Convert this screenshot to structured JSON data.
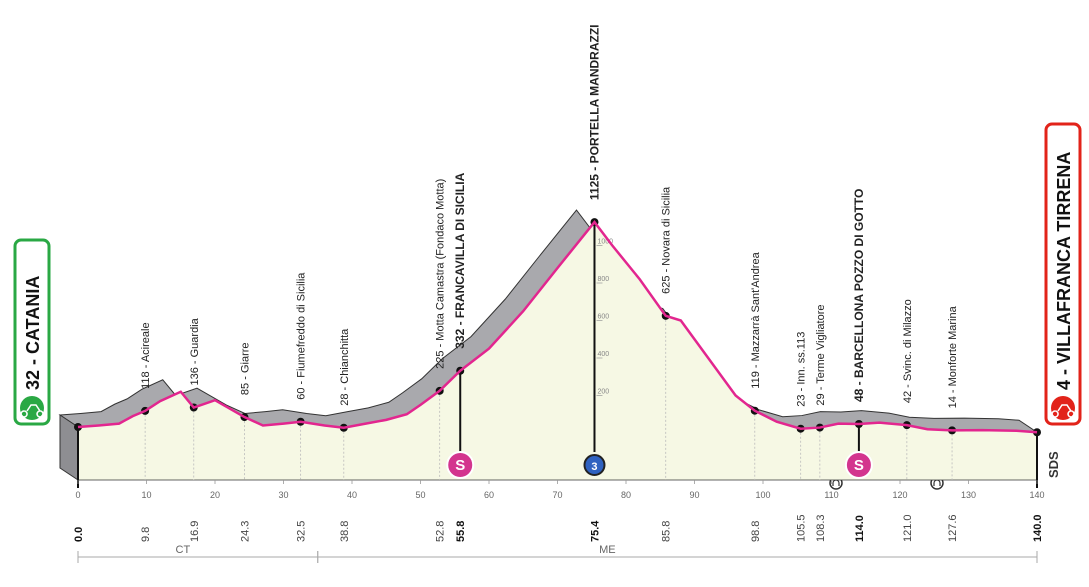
{
  "chart_data": {
    "type": "area",
    "x": [
      0,
      3,
      6,
      8,
      9.8,
      12,
      15,
      16.9,
      20,
      24.3,
      27,
      30,
      32.5,
      36,
      38.8,
      42,
      45,
      48,
      50,
      52.8,
      55.8,
      60,
      65,
      70,
      75.4,
      78,
      82,
      85.8,
      88,
      92,
      96,
      98.8,
      102,
      105.5,
      108.3,
      111,
      114,
      117,
      121,
      124,
      127.6,
      132,
      137,
      140
    ],
    "values": [
      32,
      40,
      50,
      90,
      118,
      170,
      220,
      136,
      175,
      85,
      40,
      50,
      60,
      40,
      28,
      50,
      70,
      100,
      150,
      225,
      332,
      450,
      650,
      880,
      1125,
      1000,
      820,
      625,
      600,
      400,
      200,
      119,
      60,
      23,
      29,
      50,
      48,
      55,
      42,
      20,
      14,
      15,
      12,
      4
    ],
    "color": "#e2268f",
    "xlim": [
      0,
      140
    ],
    "xticks": [
      0,
      10,
      20,
      30,
      40,
      50,
      60,
      70,
      80,
      90,
      100,
      110,
      120,
      130,
      140
    ],
    "ylim": [
      0,
      1200
    ],
    "yticks": [
      200,
      400,
      600,
      800,
      1000
    ],
    "start": {
      "label": "32 - CATANIA",
      "color": "#2aa844"
    },
    "finish": {
      "label": "4 - VILLAFRANCA TIRRENA",
      "color": "#e2231a"
    },
    "logo": "SDS",
    "waypoints": [
      {
        "km": 0,
        "km_label": "0.0",
        "bold": true
      },
      {
        "km": 9.8,
        "km_label": "9.8",
        "label": "118 - Acireale"
      },
      {
        "km": 16.9,
        "km_label": "16.9",
        "label": "136 - Guardia"
      },
      {
        "km": 24.3,
        "km_label": "24.3",
        "label": "85 - Giarre"
      },
      {
        "km": 32.5,
        "km_label": "32.5",
        "label": "60 - Fiumefreddo di Sicilia"
      },
      {
        "km": 38.8,
        "km_label": "38.8",
        "label": "28 - Chianchitta"
      },
      {
        "km": 52.8,
        "km_label": "52.8",
        "label": "225 - Motta Camastra (Fondaco Motta)"
      },
      {
        "km": 55.8,
        "km_label": "55.8",
        "label": "332 - FRANCAVILLA DI SICILIA",
        "bold": true,
        "icon": "S"
      },
      {
        "km": 75.4,
        "km_label": "75.4",
        "label": "1125 - PORTELLA MANDRAZZI",
        "bold": true,
        "icon": "3"
      },
      {
        "km": 85.8,
        "km_label": "85.8",
        "label": "625 - Novara di Sicilia"
      },
      {
        "km": 98.8,
        "km_label": "98.8",
        "label": "119 - Mazzarrà Sant'Andrea"
      },
      {
        "km": 105.5,
        "km_label": "105.5",
        "label": "23 - Inn. ss.113"
      },
      {
        "km": 108.3,
        "km_label": "108.3",
        "label": "29 - Terme Vigliatore"
      },
      {
        "km": 114,
        "km_label": "114.0",
        "label": "48 - BARCELLONA POZZO DI GOTTO",
        "bold": true,
        "icon": "S"
      },
      {
        "km": 121,
        "km_label": "121.0",
        "label": "42 - Svinc. di Milazzo"
      },
      {
        "km": 127.6,
        "km_label": "127.6",
        "label": "14 - Monforte Marina"
      },
      {
        "km": 140,
        "km_label": "140.0",
        "bold": true
      }
    ],
    "provinces": [
      {
        "label": "CT",
        "from": 0,
        "to": 35
      },
      {
        "label": "ME",
        "from": 35,
        "to": 140
      }
    ]
  }
}
